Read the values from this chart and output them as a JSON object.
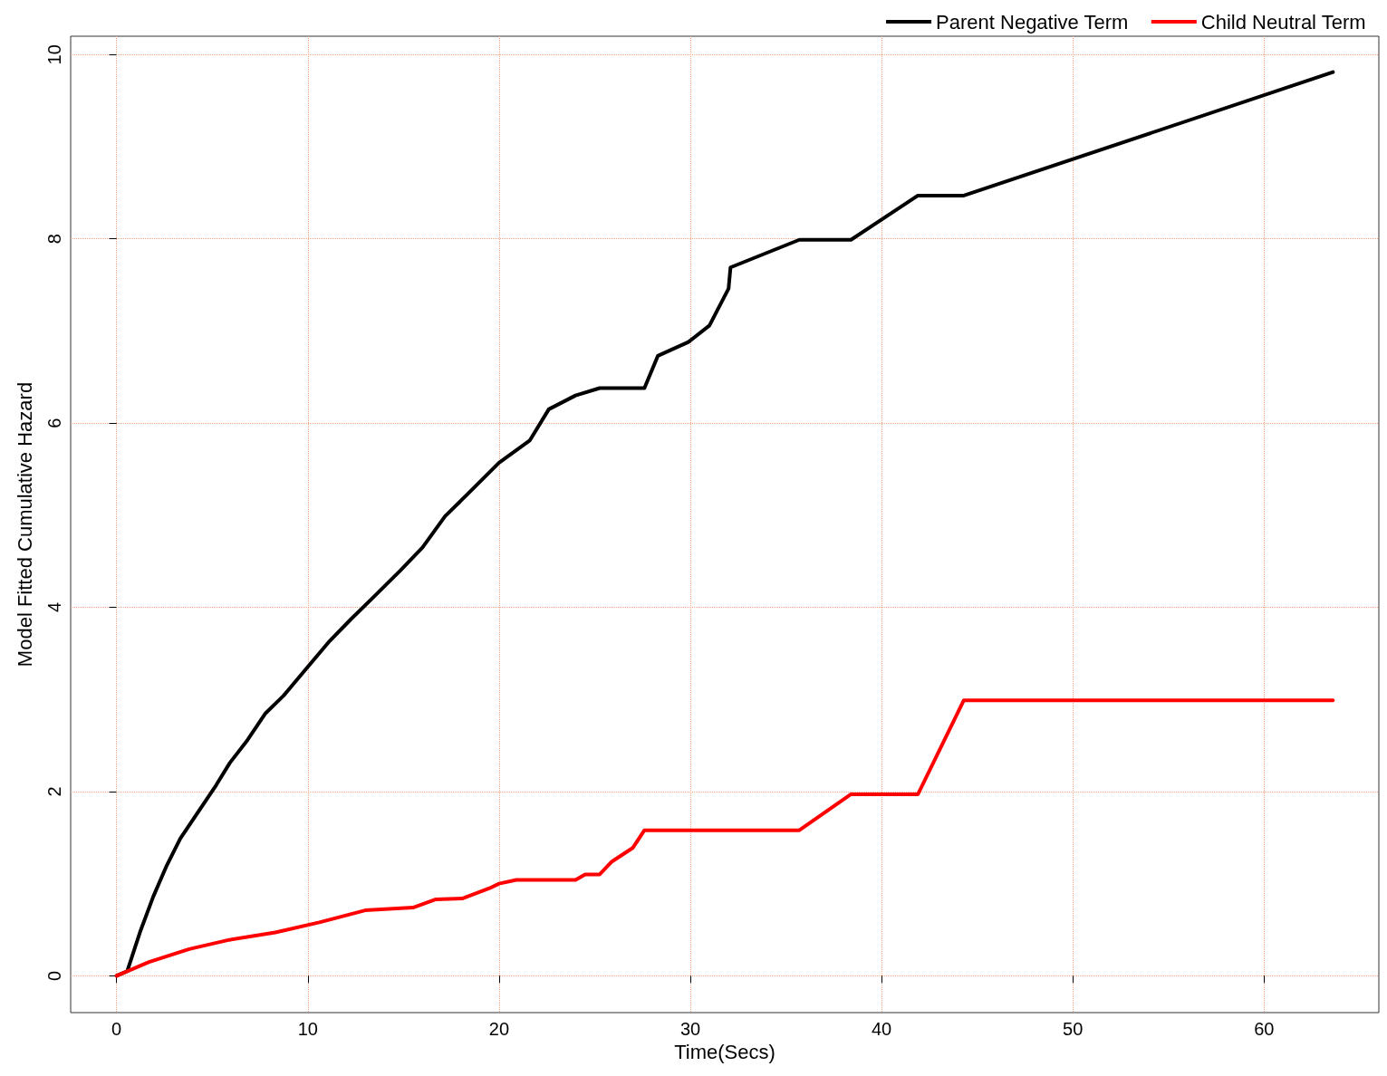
{
  "chart_data": {
    "type": "line",
    "xlabel": "Time(Secs)",
    "ylabel": "Model Fitted Cumulative Hazard",
    "xlim": [
      -2.4,
      66
    ],
    "xticks": [
      0,
      10,
      20,
      30,
      40,
      50,
      60
    ],
    "ylim": [
      -0.4,
      10.2
    ],
    "yticks": [
      0,
      2,
      4,
      6,
      8,
      10
    ],
    "grid": true,
    "legend": "top right",
    "marker": "none",
    "line_style": "solid",
    "series": [
      {
        "name": "Parent Negative Term",
        "color": "#000000",
        "x": [
          0,
          0.56,
          1.22,
          1.92,
          2.63,
          3.33,
          4.27,
          5.21,
          5.92,
          6.85,
          7.79,
          8.73,
          9.9,
          11.08,
          12.25,
          13.43,
          14.84,
          16.0,
          17.18,
          18.36,
          20.0,
          21.6,
          22.6,
          24.0,
          25.26,
          27.6,
          28.3,
          29.9,
          31.0,
          32.0,
          32.1,
          35.7,
          38.4,
          41.9,
          44.3,
          63.6
        ],
        "values": [
          0,
          0.05,
          0.47,
          0.86,
          1.2,
          1.49,
          1.78,
          2.07,
          2.31,
          2.56,
          2.85,
          3.04,
          3.33,
          3.62,
          3.87,
          4.11,
          4.4,
          4.65,
          4.99,
          5.23,
          5.57,
          5.81,
          6.15,
          6.3,
          6.38,
          6.38,
          6.73,
          6.88,
          7.06,
          7.46,
          7.69,
          7.99,
          7.99,
          8.47,
          8.47,
          9.81
        ]
      },
      {
        "name": "Child Neutral Term",
        "color": "#ff0000",
        "x": [
          0,
          1.7,
          3.8,
          5.9,
          8.3,
          10.6,
          13.0,
          15.5,
          16.7,
          18.1,
          19.5,
          20.0,
          20.9,
          24.0,
          24.5,
          25.26,
          25.9,
          27.0,
          27.6,
          35.7,
          38.4,
          41.9,
          44.3,
          63.6
        ],
        "values": [
          0,
          0.15,
          0.29,
          0.39,
          0.47,
          0.58,
          0.71,
          0.74,
          0.83,
          0.84,
          0.95,
          1.0,
          1.04,
          1.04,
          1.1,
          1.1,
          1.24,
          1.39,
          1.58,
          1.58,
          1.97,
          1.97,
          2.99,
          2.99
        ]
      }
    ]
  }
}
